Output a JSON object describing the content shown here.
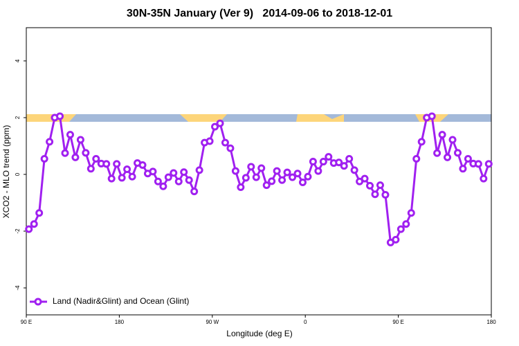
{
  "chart_data": {
    "type": "line",
    "title": "30N-35N January (Ver 9)   2014-09-06 to 2018-12-01",
    "x_label": "Longitude (deg E)",
    "y_label": "XCO2 - MLO trend (ppm)",
    "x": [
      92.5,
      97.5,
      102.5,
      107.5,
      112.5,
      117.5,
      122.5,
      127.5,
      132.5,
      137.5,
      142.5,
      147.5,
      152.5,
      157.5,
      162.5,
      167.5,
      172.5,
      177.5,
      182.5,
      187.5,
      192.5,
      197.5,
      202.5,
      207.5,
      212.5,
      217.5,
      222.5,
      227.5,
      232.5,
      237.5,
      242.5,
      247.5,
      252.5,
      257.5,
      262.5,
      267.5,
      272.5,
      277.5,
      282.5,
      287.5,
      292.5,
      297.5,
      302.5,
      307.5,
      312.5,
      317.5,
      322.5,
      327.5,
      332.5,
      337.5,
      342.5,
      347.5,
      352.5,
      357.5,
      362.5,
      367.5,
      372.5,
      377.5,
      382.5,
      387.5,
      392.5,
      397.5,
      402.5,
      407.5,
      412.5,
      417.5,
      422.5,
      427.5,
      432.5,
      437.5,
      442.5,
      447.5,
      452.5,
      457.5,
      462.5,
      467.5,
      472.5,
      477.5,
      482.5,
      487.5,
      492.5,
      497.5,
      502.5,
      507.5,
      512.5,
      517.5,
      522.5,
      527.5,
      532.5,
      537.5
    ],
    "series": [
      {
        "name": "Land (Nadir&Glint) and Ocean (Glint)",
        "color": "#a020f0",
        "values": [
          -1.93,
          -1.75,
          -1.36,
          0.55,
          1.15,
          2.0,
          2.05,
          0.75,
          1.4,
          0.6,
          1.22,
          0.76,
          0.2,
          0.55,
          0.38,
          0.37,
          -0.15,
          0.37,
          -0.12,
          0.18,
          -0.08,
          0.4,
          0.33,
          0.03,
          0.1,
          -0.25,
          -0.42,
          -0.1,
          0.05,
          -0.25,
          0.08,
          -0.2,
          -0.6,
          0.15,
          1.12,
          1.17,
          1.68,
          1.8,
          1.12,
          0.92,
          0.12,
          -0.45,
          -0.12,
          0.27,
          -0.1,
          0.22,
          -0.38,
          -0.24,
          0.12,
          -0.2,
          0.07,
          -0.1,
          0.03,
          -0.28,
          -0.08,
          0.45,
          0.12,
          0.45,
          0.62,
          0.4,
          0.42,
          0.3,
          0.55,
          0.15,
          -0.25,
          -0.15,
          -0.4,
          -0.7,
          -0.38,
          -0.72,
          -2.4,
          -2.3,
          -1.93,
          -1.75,
          -1.36,
          0.55,
          1.15,
          2.0,
          2.05,
          0.75,
          1.4,
          0.6,
          1.22,
          0.76,
          0.2,
          0.55,
          0.38,
          0.37,
          -0.15,
          0.37
        ]
      }
    ],
    "xlim": [
      90,
      540
    ],
    "xticks": [
      {
        "value": 90,
        "label": "90 E"
      },
      {
        "value": 180,
        "label": "180"
      },
      {
        "value": 270,
        "label": "90 W"
      },
      {
        "value": 360,
        "label": "0"
      },
      {
        "value": 450,
        "label": "90 E"
      },
      {
        "value": 540,
        "label": "180"
      }
    ],
    "ylim": [
      -4.95,
      5.17
    ],
    "yticks": [
      -4,
      -2,
      0,
      2,
      4
    ],
    "legend": "bottom-left"
  }
}
